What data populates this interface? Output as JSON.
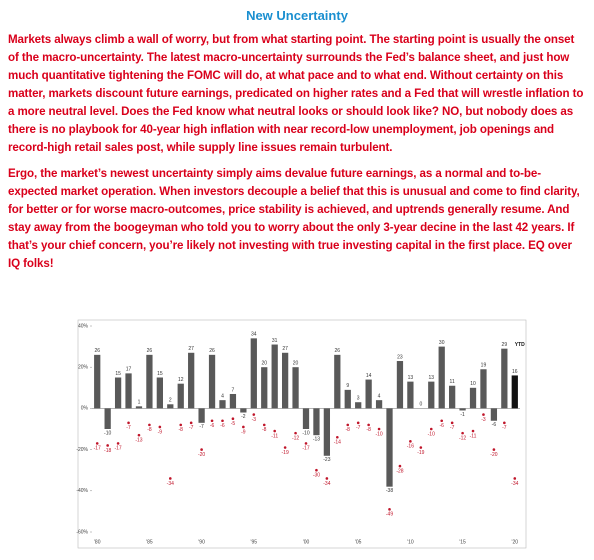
{
  "title": "New Uncertainty",
  "paragraphs": [
    "Markets always climb a wall of worry, but from what starting point. The starting point is usually the onset of the macro-uncertainty. The latest macro-uncertainty surrounds the Fed’s balance sheet, and just how much quantitative tightening the FOMC will do, at what pace and to what end. Without certainty on this matter, markets discount future earnings, predicated on higher rates and a Fed that will wrestle inflation to a more neutral level. Does the Fed know what neutral looks or should look like? NO, but nobody does as there is no playbook for 40-year high inflation with near record-low unemployment, job openings and record-high retail sales post, while supply line issues remain turbulent.",
    "Ergo, the market’s newest uncertainty simply aims devalue future earnings, as a normal and to-be-expected market operation. When investors decouple a belief that this is unusual and come to find clarity, for better or for worse macro-outcomes, price stability is achieved, and uptrends generally resume.  And stay away from the boogeyman who told you to worry about the only 3-year decine in the last 42 years. If that’s your chief concern, you’re likely not investing with true investing capital in the first place. EQ over IQ folks!"
  ],
  "chart_data": {
    "type": "bar",
    "categories": [
      "'80",
      null,
      null,
      null,
      null,
      "'85",
      null,
      null,
      null,
      null,
      "'90",
      null,
      null,
      null,
      null,
      "'95",
      null,
      null,
      null,
      null,
      "'00",
      null,
      null,
      null,
      null,
      "'05",
      null,
      null,
      null,
      null,
      "'10",
      null,
      null,
      null,
      null,
      "'15",
      null,
      null,
      null,
      null,
      "'20"
    ],
    "values": [
      26,
      -10,
      15,
      17,
      1,
      26,
      15,
      2,
      12,
      27,
      -7,
      26,
      4,
      7,
      -2,
      34,
      20,
      31,
      27,
      20,
      -10,
      -13,
      -23,
      26,
      9,
      3,
      14,
      4,
      -38,
      23,
      13,
      0,
      13,
      30,
      11,
      -1,
      10,
      19,
      -6,
      29,
      16
    ],
    "intra_year_declines": [
      -17,
      -18,
      -17,
      -7,
      -13,
      -8,
      -9,
      -34,
      -8,
      -7,
      -20,
      -6,
      -6,
      -5,
      -9,
      -3,
      -8,
      -11,
      -19,
      -12,
      -17,
      -30,
      -34,
      -14,
      -8,
      -7,
      -8,
      -10,
      -49,
      -28,
      -16,
      -19,
      -10,
      -6,
      -7,
      -12,
      -11,
      -3,
      -20,
      -7,
      -34
    ],
    "annotation": "YTD",
    "bar_color": "#595959",
    "highlight_color": "#111111",
    "highlight_index": 40,
    "dot_color": "#c0152a",
    "ylim": [
      -60,
      40
    ],
    "yticks": [
      {
        "value": 40,
        "label": "40%"
      },
      {
        "value": 20,
        "label": "20%"
      },
      {
        "value": 0,
        "label": "0%"
      },
      {
        "value": -20,
        "label": "-20%"
      },
      {
        "value": -40,
        "label": "-40%"
      },
      {
        "value": -60,
        "label": "-60%"
      }
    ]
  }
}
